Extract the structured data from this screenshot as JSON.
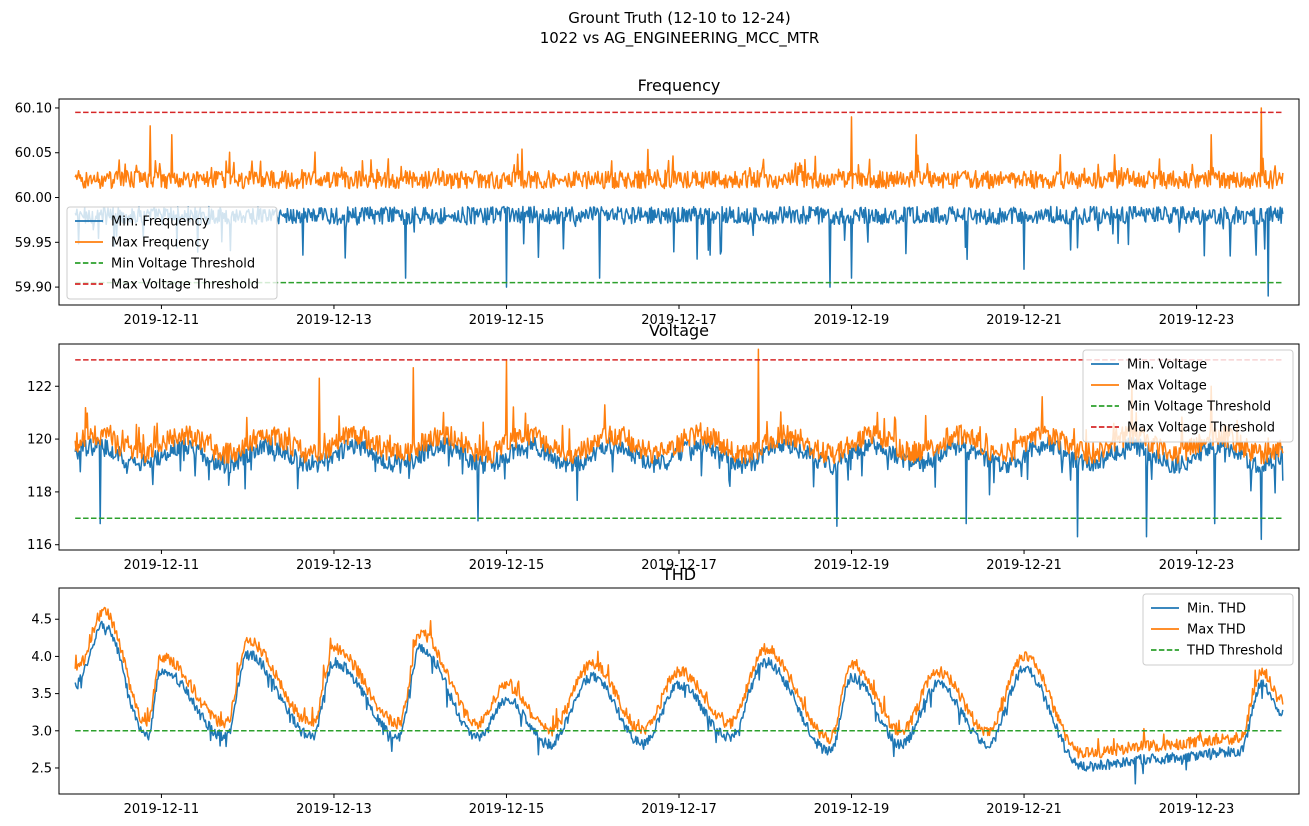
{
  "figure": {
    "title_line1": "Grount Truth (12-10 to 12-24)",
    "title_line2": "1022 vs AG_ENGINEERING_MCC_MTR"
  },
  "colors": {
    "min_series": "#1f77b4",
    "max_series": "#ff7f0e",
    "min_threshold": "#2ca02c",
    "max_threshold": "#d62728"
  },
  "chart_data": [
    {
      "type": "line",
      "title": "Frequency",
      "x_range": [
        "2019-12-10",
        "2019-12-24"
      ],
      "x_ticks": [
        "2019-12-11",
        "2019-12-13",
        "2019-12-15",
        "2019-12-17",
        "2019-12-19",
        "2019-12-21",
        "2019-12-23"
      ],
      "ylim": [
        59.88,
        60.11
      ],
      "y_ticks": [
        59.9,
        59.95,
        60.0,
        60.05,
        60.1
      ],
      "y_tick_labels": [
        "59.90",
        "59.95",
        "60.00",
        "60.05",
        "60.10"
      ],
      "legend_position": "lower-left",
      "series": [
        {
          "name": "Min. Frequency",
          "role": "min",
          "base": 59.98,
          "noise": 0.01,
          "spike_dir": -1,
          "spike_size": 0.05,
          "spikes": [
            [
              "2019-12-15 00:00",
              59.9
            ],
            [
              "2019-12-18 18:00",
              59.9
            ],
            [
              "2019-12-23 20:00",
              59.89
            ],
            [
              "2019-12-13 20:00",
              59.91
            ],
            [
              "2019-12-21 00:00",
              59.92
            ],
            [
              "2019-12-19 00:00",
              59.91
            ],
            [
              "2019-12-16 02:00",
              59.91
            ]
          ]
        },
        {
          "name": "Max Frequency",
          "role": "max",
          "base": 60.02,
          "noise": 0.01,
          "spike_dir": 1,
          "spike_size": 0.03,
          "spikes": [
            [
              "2019-12-10 21:00",
              60.08
            ],
            [
              "2019-12-19 00:00",
              60.09
            ],
            [
              "2019-12-23 18:00",
              60.1
            ],
            [
              "2019-12-11 03:00",
              60.07
            ],
            [
              "2019-12-19 18:00",
              60.07
            ],
            [
              "2019-12-23 04:00",
              60.07
            ]
          ]
        },
        {
          "name": "Min Voltage Threshold",
          "role": "min_threshold",
          "value": 59.905
        },
        {
          "name": "Max Voltage Threshold",
          "role": "max_threshold",
          "value": 60.095
        }
      ]
    },
    {
      "type": "line",
      "title": "Voltage",
      "x_range": [
        "2019-12-10",
        "2019-12-24"
      ],
      "x_ticks": [
        "2019-12-11",
        "2019-12-13",
        "2019-12-15",
        "2019-12-17",
        "2019-12-19",
        "2019-12-21",
        "2019-12-23"
      ],
      "ylim": [
        115.8,
        123.6
      ],
      "y_ticks": [
        116,
        118,
        120,
        122
      ],
      "y_tick_labels": [
        "116",
        "118",
        "120",
        "122"
      ],
      "legend_position": "upper-right",
      "series": [
        {
          "name": "Min. Voltage",
          "role": "min",
          "base": 119.4,
          "noise": 0.35,
          "spike_dir": -1,
          "spike_size": 1.2,
          "spikes": [
            [
              "2019-12-10 07:00",
              116.8
            ],
            [
              "2019-12-14 16:00",
              116.9
            ],
            [
              "2019-12-18 20:00",
              116.7
            ],
            [
              "2019-12-20 08:00",
              116.8
            ],
            [
              "2019-12-21 15:00",
              116.3
            ],
            [
              "2019-12-22 10:00",
              116.3
            ],
            [
              "2019-12-23 18:00",
              116.2
            ],
            [
              "2019-12-23 05:00",
              116.8
            ]
          ]
        },
        {
          "name": "Max Voltage",
          "role": "max",
          "base": 119.8,
          "noise": 0.4,
          "spike_dir": 1,
          "spike_size": 1.2,
          "spikes": [
            [
              "2019-12-12 20:00",
              122.3
            ],
            [
              "2019-12-13 22:00",
              122.7
            ],
            [
              "2019-12-15 00:00",
              123.0
            ],
            [
              "2019-12-17 22:00",
              123.4
            ],
            [
              "2019-12-22 06:00",
              122.1
            ],
            [
              "2019-12-23 04:00",
              122.0
            ]
          ]
        },
        {
          "name": "Min Voltage Threshold",
          "role": "min_threshold",
          "value": 117
        },
        {
          "name": "Max Voltage Threshold",
          "role": "max_threshold",
          "value": 123
        }
      ]
    },
    {
      "type": "line",
      "title": "THD",
      "x_range": [
        "2019-12-10",
        "2019-12-24"
      ],
      "x_ticks": [
        "2019-12-11",
        "2019-12-13",
        "2019-12-15",
        "2019-12-17",
        "2019-12-19",
        "2019-12-21",
        "2019-12-23"
      ],
      "ylim": [
        2.15,
        4.92
      ],
      "y_ticks": [
        2.5,
        3.0,
        3.5,
        4.0,
        4.5
      ],
      "y_tick_labels": [
        "2.5",
        "3.0",
        "3.5",
        "4.0",
        "4.5"
      ],
      "legend_position": "upper-right",
      "cycle_peaks": [
        [
          "2019-12-10 00:00",
          3.7
        ],
        [
          "2019-12-10 08:00",
          4.5
        ],
        [
          "2019-12-10 20:00",
          3.0
        ],
        [
          "2019-12-11 00:00",
          3.9
        ],
        [
          "2019-12-11 18:00",
          3.0
        ],
        [
          "2019-12-12 00:00",
          4.1
        ],
        [
          "2019-12-12 18:00",
          3.0
        ],
        [
          "2019-12-13 00:00",
          4.0
        ],
        [
          "2019-12-13 18:00",
          3.0
        ],
        [
          "2019-12-14 00:00",
          4.2
        ],
        [
          "2019-12-14 16:00",
          3.0
        ],
        [
          "2019-12-15 00:00",
          3.5
        ],
        [
          "2019-12-15 12:00",
          2.9
        ],
        [
          "2019-12-16 00:00",
          3.8
        ],
        [
          "2019-12-16 14:00",
          2.9
        ],
        [
          "2019-12-17 00:00",
          3.7
        ],
        [
          "2019-12-17 14:00",
          3.0
        ],
        [
          "2019-12-18 00:00",
          4.0
        ],
        [
          "2019-12-18 18:00",
          2.8
        ],
        [
          "2019-12-19 00:00",
          3.8
        ],
        [
          "2019-12-19 14:00",
          2.9
        ],
        [
          "2019-12-20 00:00",
          3.7
        ],
        [
          "2019-12-20 14:00",
          2.9
        ],
        [
          "2019-12-21 00:00",
          3.9
        ],
        [
          "2019-12-21 16:00",
          2.6
        ],
        [
          "2019-12-22 12:00",
          2.7
        ],
        [
          "2019-12-23 12:00",
          2.8
        ],
        [
          "2019-12-23 18:00",
          3.7
        ],
        [
          "2019-12-24 00:00",
          3.3
        ]
      ],
      "series": [
        {
          "name": "Min. THD",
          "role": "min",
          "offset": -0.08,
          "noise": 0.07
        },
        {
          "name": "Max THD",
          "role": "max",
          "offset": 0.1,
          "noise": 0.08
        },
        {
          "name": "THD Threshold",
          "role": "min_threshold",
          "value": 3.0
        }
      ]
    }
  ]
}
